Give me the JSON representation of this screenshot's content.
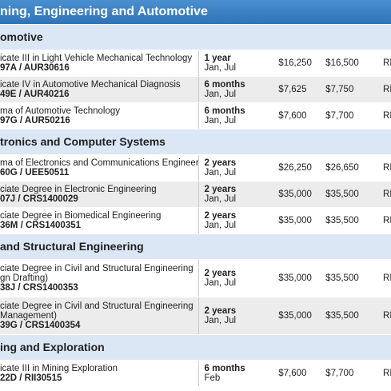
{
  "header": {
    "title": "ning, Engineering and Automotive"
  },
  "sections": [
    {
      "title": "omotive",
      "rows": [
        {
          "course": [
            "icate III in Light Vehicle Mechanical Technology"
          ],
          "code": "97A / AUR30616",
          "duration": "1 year",
          "intake": "Jan, Jul",
          "fee1": "$16,250",
          "fee2": "$16,500",
          "extra": "RE"
        },
        {
          "course": [
            "icate IV in Automotive Mechanical Diagnosis"
          ],
          "code": "49E / AUR40216",
          "duration": "6 months",
          "intake": "Jan, Jul",
          "fee1": "$7,625",
          "fee2": "$7,750",
          "extra": "RE"
        },
        {
          "course": [
            "ma of Automotive Technology"
          ],
          "code": "97G / AUR50216",
          "duration": "6 months",
          "intake": "Jan, Jul",
          "fee1": "$7,600",
          "fee2": "$7,700",
          "extra": "RE"
        }
      ]
    },
    {
      "title": "tronics and Computer Systems",
      "rows": [
        {
          "course": [
            "ma of Electronics and Communications Engineering"
          ],
          "code": "60G / UEE50511",
          "duration": "2 years",
          "intake": "Jan, Jul",
          "fee1": "$26,250",
          "fee2": "$26,650",
          "extra": "RE"
        },
        {
          "course": [
            "ciate Degree in Electronic Engineering"
          ],
          "code": "07J / CRS1400029",
          "duration": "2 years",
          "intake": "Jan, Jul",
          "fee1": "$35,000",
          "fee2": "$35,500",
          "extra": "RE"
        },
        {
          "course": [
            "ciate Degree in Biomedical Engineering"
          ],
          "code": "36M / CRS1400351",
          "duration": "2 years",
          "intake": "Jan, Jul",
          "fee1": "$35,000",
          "fee2": "$35,500",
          "extra": "RE"
        }
      ]
    },
    {
      "title": "and Structural Engineering",
      "rows": [
        {
          "course": [
            "ciate Degree in Civil and Structural Engineering",
            "gn Drafting)"
          ],
          "code": "38J / CRS1400353",
          "duration": "2 years",
          "intake": "Jan, Jul",
          "fee1": "$35,000",
          "fee2": "$35,500",
          "extra": "RE"
        },
        {
          "course": [
            "ciate Degree in Civil and Structural Engineering",
            "Management)"
          ],
          "code": "39G / CRS1400354",
          "duration": "2 years",
          "intake": "Jan, Jul",
          "fee1": "$35,000",
          "fee2": "$35,500",
          "extra": "RE"
        }
      ]
    },
    {
      "title": "ing and Exploration",
      "rows": [
        {
          "course": [
            "icate III in Mining Exploration"
          ],
          "code": "22D / RII30515",
          "duration": "6 months",
          "intake": "Feb",
          "fee1": "$7,600",
          "fee2": "$7,700",
          "extra": "RE"
        }
      ]
    }
  ]
}
